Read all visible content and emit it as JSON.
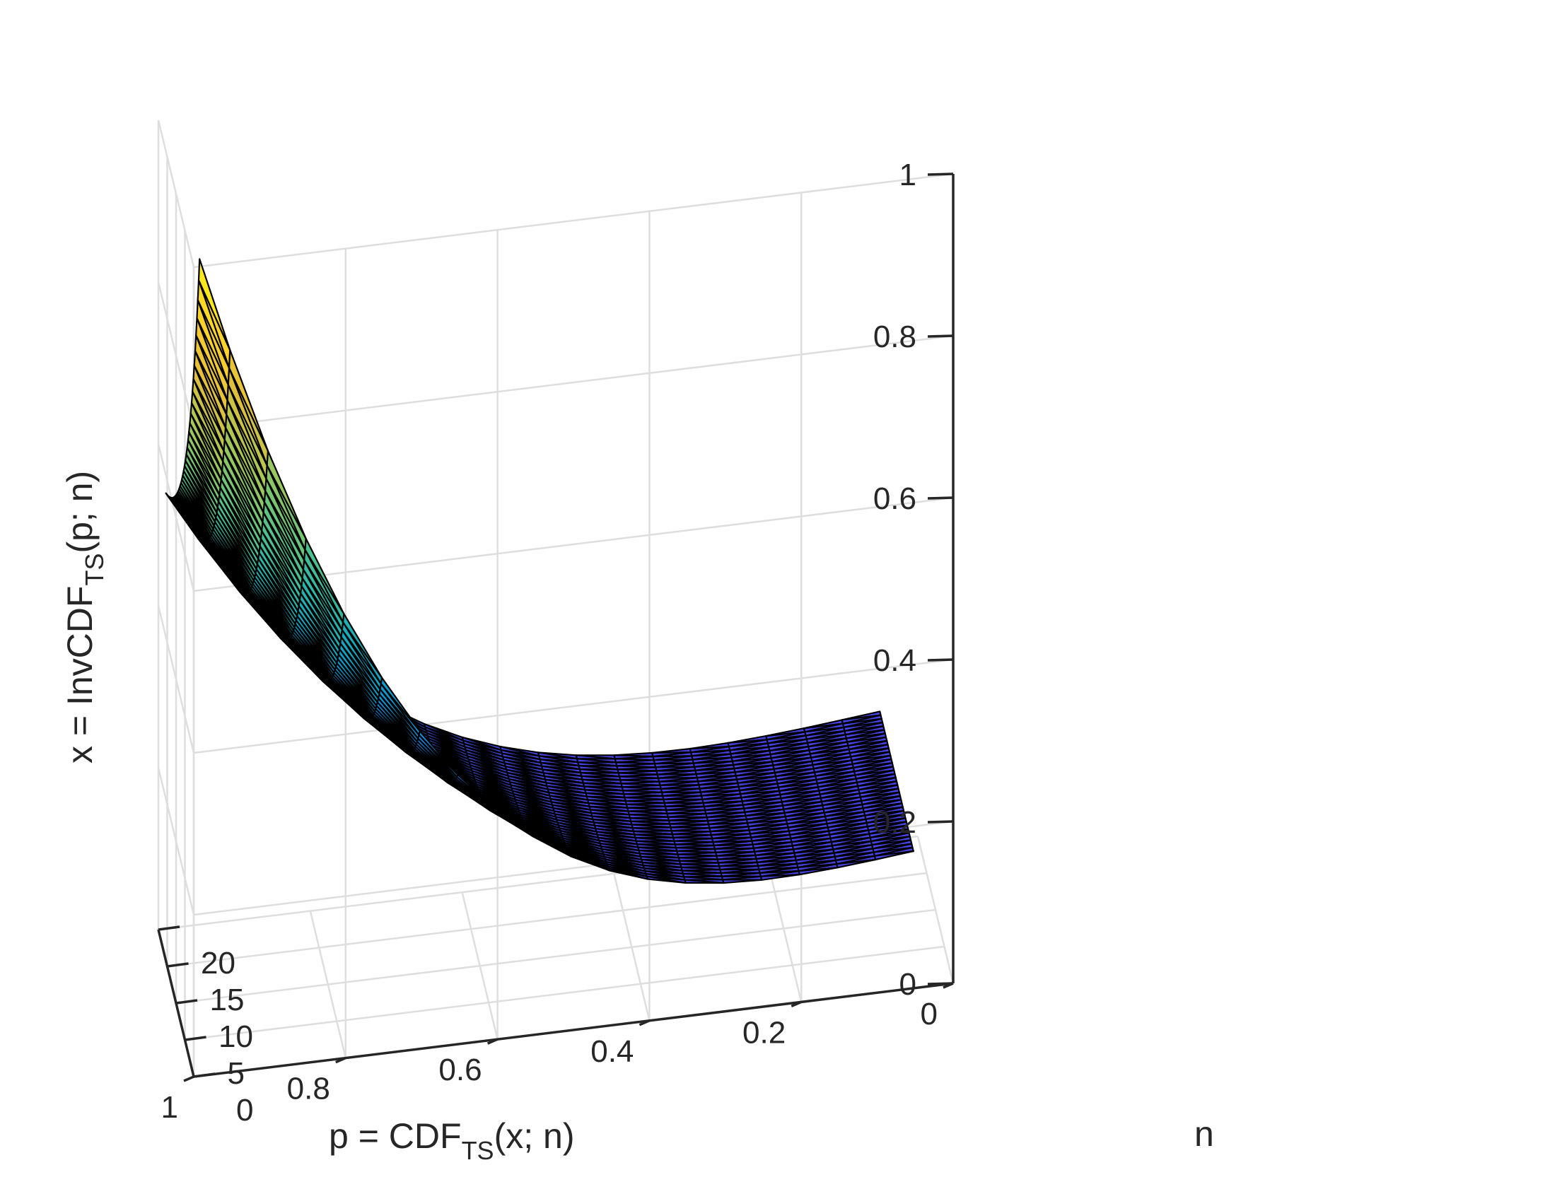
{
  "chart_data": {
    "type": "surface",
    "xlabel": {
      "prefix": "p = CDF",
      "sub": "TS",
      "suffix": "(x; n)"
    },
    "ylabel": "n",
    "zlabel": {
      "prefix": "x = InvCDF",
      "sub": "TS",
      "suffix": "(p; n)"
    },
    "xlim": [
      0,
      1
    ],
    "ylim": [
      0,
      20
    ],
    "zlim": [
      0,
      1
    ],
    "x_ticks": [
      "0",
      "0.2",
      "0.4",
      "0.6",
      "0.8",
      "1"
    ],
    "x_tick_values": [
      0,
      0.2,
      0.4,
      0.6,
      0.8,
      1
    ],
    "y_ticks": [
      "0",
      "5",
      "10",
      "15",
      "20"
    ],
    "y_tick_values": [
      0,
      5,
      10,
      15,
      20
    ],
    "z_ticks": [
      "0",
      "0.2",
      "0.4",
      "0.6",
      "0.8",
      "1"
    ],
    "z_tick_values": [
      0,
      0.2,
      0.4,
      0.6,
      0.8,
      1
    ],
    "p_grid": [
      0.05,
      0.1,
      0.15,
      0.2,
      0.25,
      0.3,
      0.35,
      0.4,
      0.45,
      0.5,
      0.55,
      0.6,
      0.65,
      0.7,
      0.75,
      0.8,
      0.85,
      0.9,
      0.95,
      0.99
    ],
    "n_grid": [
      1,
      1.5,
      2,
      2.5,
      3,
      3.5,
      4,
      4.5,
      5,
      5.5,
      6,
      6.5,
      7,
      7.5,
      8,
      8.5,
      9,
      9.5,
      10,
      10.5,
      11,
      11.5,
      12,
      12.5,
      13,
      13.5,
      14,
      14.5,
      15,
      15.5,
      16,
      16.5,
      17,
      17.5,
      18,
      18.5,
      19,
      19.5,
      20
    ],
    "z_at_p_max_by_n": {
      "1": 1.0,
      "5": 0.8,
      "20": 0.53
    },
    "z_at_p_min_by_n": {
      "1": 0.1,
      "20": 0.1
    },
    "grid": true,
    "colormap": "parula"
  }
}
